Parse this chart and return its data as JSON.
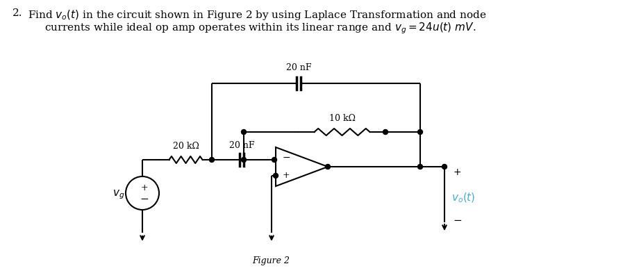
{
  "bg_color": "#ffffff",
  "label_20nF_top": "20 nF",
  "label_20nF_mid": "20 nF",
  "label_20kohm": "20 kΩ",
  "label_10kohm": "10 kΩ",
  "figure_label": "Figure 2",
  "vo_color": "#4AAACC",
  "black": "#000000"
}
